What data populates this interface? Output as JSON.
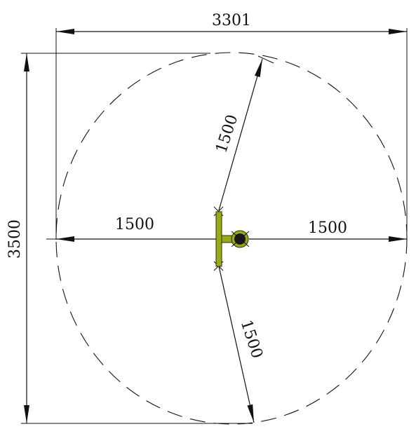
{
  "dimensions": {
    "overall_width": "3301",
    "overall_height": "3500",
    "radius_upper": "1500",
    "radius_left": "1500",
    "radius_right": "1500",
    "radius_lower": "1500"
  },
  "colors": {
    "line": "#111111",
    "post_green": "#9aa81c",
    "post_dark": "#2e3200",
    "ball": "#1a1a1a"
  }
}
